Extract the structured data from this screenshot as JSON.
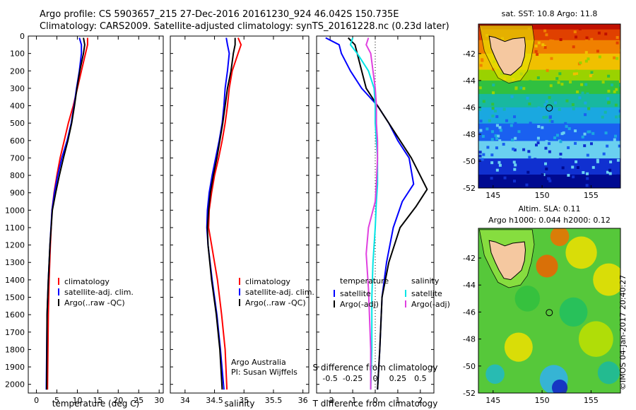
{
  "header": {
    "line1": "Argo profile: CS 5903657_215 27-Dec-2016 20161230_924 46.042S 150.735E",
    "line2": "Climatology: CARS2009. Satellite-adjusted climatology: synTS_20161228.nc (0.23d later)"
  },
  "colors": {
    "climatology": "#ff0000",
    "satellite": "#0000ff",
    "argo": "#000000",
    "salinity_sat": "#00e5e5",
    "salinity_argo": "#e040e0",
    "land": "#f5c8a0"
  },
  "chart_data": [
    {
      "type": "line",
      "id": "temperature",
      "xlabel": "temperature (deg C)",
      "xlim": [
        -2,
        31
      ],
      "ylim": [
        0,
        2050
      ],
      "inverted_y": true,
      "xticks": [
        0,
        5,
        10,
        15,
        20,
        25,
        30
      ],
      "yticks": [
        0,
        100,
        200,
        300,
        400,
        500,
        600,
        700,
        800,
        900,
        1000,
        1100,
        1200,
        1300,
        1400,
        1500,
        1600,
        1700,
        1800,
        1900,
        2000
      ],
      "legend": [
        "climatology",
        "satellite-adj. clim.",
        "Argo(..raw -QC)"
      ],
      "series": [
        {
          "name": "climatology",
          "color": "#ff0000",
          "x": [
            12.5,
            12.5,
            12,
            11,
            10,
            9,
            7.8,
            6.8,
            5.8,
            5,
            4.3,
            3.8,
            3.4,
            3.1,
            2.9,
            2.7
          ],
          "y": [
            10,
            50,
            100,
            200,
            300,
            400,
            500,
            600,
            700,
            800,
            900,
            1000,
            1200,
            1400,
            1600,
            2030
          ]
        },
        {
          "name": "satellite-adj. clim.",
          "color": "#0000ff",
          "x": [
            10.5,
            11,
            11,
            10.5,
            9.8,
            9.2,
            8.5,
            7.5,
            6.2,
            5.2,
            4.4,
            3.8,
            3.3,
            2.9,
            2.6,
            2.4
          ],
          "y": [
            10,
            50,
            100,
            200,
            300,
            400,
            500,
            600,
            700,
            800,
            900,
            1000,
            1200,
            1400,
            1600,
            2030
          ]
        },
        {
          "name": "Argo(..raw -QC)",
          "color": "#000000",
          "x": [
            11.5,
            11.8,
            11.5,
            10.6,
            9.9,
            9.3,
            8.6,
            7.7,
            6.6,
            5.6,
            4.7,
            3.9,
            3.3,
            2.9,
            2.6,
            2.5
          ],
          "y": [
            10,
            50,
            100,
            200,
            300,
            400,
            500,
            600,
            700,
            800,
            900,
            1000,
            1200,
            1400,
            1600,
            2030
          ]
        }
      ]
    },
    {
      "type": "line",
      "id": "salinity",
      "xlabel": "salinity",
      "xlim": [
        33.75,
        36.1
      ],
      "ylim": [
        0,
        2050
      ],
      "inverted_y": true,
      "xticks": [
        34,
        34.5,
        35,
        35.5,
        36
      ],
      "legend": [
        "climatology",
        "satellite-adj. clim.",
        "Argo(..raw -QC)"
      ],
      "credit": [
        "Argo Australia",
        "PI: Susan Wijffels"
      ],
      "series": [
        {
          "name": "climatology",
          "color": "#ff0000",
          "x": [
            34.9,
            34.95,
            34.9,
            34.8,
            34.75,
            34.72,
            34.68,
            34.63,
            34.57,
            34.5,
            34.45,
            34.41,
            34.4,
            34.45,
            34.55,
            34.62,
            34.68,
            34.71
          ],
          "y": [
            10,
            50,
            100,
            200,
            300,
            400,
            500,
            600,
            700,
            800,
            900,
            1000,
            1100,
            1200,
            1400,
            1600,
            1800,
            2030
          ]
        },
        {
          "name": "satellite-adj. clim.",
          "color": "#0000ff",
          "x": [
            34.7,
            34.72,
            34.75,
            34.72,
            34.68,
            34.66,
            34.63,
            34.58,
            34.52,
            34.46,
            34.41,
            34.38,
            34.37,
            34.39,
            34.46,
            34.54,
            34.6,
            34.66
          ],
          "y": [
            10,
            50,
            100,
            200,
            300,
            400,
            500,
            600,
            700,
            800,
            900,
            1000,
            1100,
            1200,
            1400,
            1600,
            1800,
            2030
          ]
        },
        {
          "name": "Argo(..raw -QC)",
          "color": "#000000",
          "x": [
            34.85,
            34.85,
            34.82,
            34.78,
            34.72,
            34.68,
            34.64,
            34.59,
            34.54,
            34.48,
            34.43,
            34.4,
            34.38,
            34.39,
            34.45,
            34.53,
            34.59,
            34.63
          ],
          "y": [
            10,
            50,
            100,
            200,
            300,
            400,
            500,
            600,
            700,
            800,
            900,
            1000,
            1100,
            1200,
            1400,
            1600,
            1800,
            2030
          ]
        }
      ]
    },
    {
      "type": "line",
      "id": "difference",
      "xlabel": "T difference from climatology",
      "xlabel_top": "S difference from climatology",
      "xlim": [
        -2.6,
        2.6
      ],
      "ylim": [
        0,
        2050
      ],
      "inverted_y": true,
      "xticks": [
        -2,
        -1,
        0,
        1,
        2
      ],
      "s_ticks": [
        -0.5,
        -0.25,
        0,
        0.25,
        0.5
      ],
      "legend_temperature_title": "temperature",
      "legend_salinity_title": "salinity",
      "legend": [
        "satellite",
        "Argo(-adj)",
        "satellite",
        "Argo(-adj)"
      ],
      "series": [
        {
          "name": "satellite",
          "group": "temperature",
          "color": "#0000ff",
          "x": [
            -2.2,
            -1.6,
            -1.5,
            -1.1,
            -0.6,
            0.1,
            0.6,
            1.0,
            1.5,
            1.7,
            1.2,
            0.8,
            0.5,
            0.3,
            0.2,
            0.1
          ],
          "y": [
            10,
            50,
            100,
            200,
            300,
            400,
            500,
            600,
            700,
            850,
            950,
            1100,
            1300,
            1500,
            1800,
            2030
          ]
        },
        {
          "name": "Argo(-adj)",
          "group": "temperature",
          "color": "#000000",
          "x": [
            -1.2,
            -0.9,
            -0.8,
            -0.6,
            -0.4,
            0.1,
            0.6,
            1.1,
            1.6,
            2.3,
            1.8,
            1.1,
            0.6,
            0.3,
            0.2,
            0.1
          ],
          "y": [
            10,
            50,
            100,
            200,
            300,
            400,
            500,
            600,
            700,
            880,
            980,
            1100,
            1300,
            1500,
            1800,
            2030
          ]
        },
        {
          "name": "satellite",
          "group": "salinity",
          "color": "#00e5e5",
          "x": [
            -1.0,
            -1.1,
            -0.8,
            -0.3,
            -0.05,
            0,
            0,
            0.05,
            0.1,
            0.1,
            0.05,
            0,
            -0.1,
            -0.15,
            -0.15,
            -0.2
          ],
          "y": [
            10,
            50,
            100,
            200,
            300,
            400,
            500,
            600,
            700,
            850,
            950,
            1100,
            1300,
            1500,
            1800,
            2030
          ]
        },
        {
          "name": "Argo(-adj)",
          "group": "salinity",
          "color": "#e040e0",
          "x": [
            -0.3,
            -0.4,
            -0.2,
            -0.1,
            0,
            0.05,
            0.05,
            0.1,
            0.1,
            0.05,
            0,
            -0.3,
            -0.4,
            -0.3,
            -0.2,
            -0.2
          ],
          "y": [
            10,
            50,
            100,
            200,
            300,
            400,
            500,
            600,
            700,
            850,
            950,
            1100,
            1250,
            1450,
            1800,
            2030
          ]
        }
      ]
    },
    {
      "type": "heatmap",
      "id": "sst_map",
      "title": "sat. SST: 10.8 Argo: 11.8",
      "xlim": [
        143.5,
        158
      ],
      "ylim": [
        -52,
        -39.8
      ],
      "xticks": [
        145,
        150,
        155
      ],
      "yticks": [
        -42,
        -44,
        -46,
        -48,
        -50,
        -52
      ],
      "profile_lon": 150.735,
      "profile_lat": -46.042,
      "bands": [
        {
          "lat": -40.2,
          "color": "#c01000"
        },
        {
          "lat": -41.0,
          "color": "#e04000"
        },
        {
          "lat": -42.0,
          "color": "#f08000"
        },
        {
          "lat": -43.2,
          "color": "#f0c000"
        },
        {
          "lat": -44.0,
          "color": "#9ad200"
        },
        {
          "lat": -45.0,
          "color": "#30c040"
        },
        {
          "lat": -46.0,
          "color": "#18b8a0"
        },
        {
          "lat": -47.2,
          "color": "#1aa8e0"
        },
        {
          "lat": -48.5,
          "color": "#1a60f0"
        },
        {
          "lat": -49.8,
          "color": "#6ad0f0"
        },
        {
          "lat": -51.0,
          "color": "#1030d0"
        },
        {
          "lat": -52.0,
          "color": "#000a90"
        }
      ]
    },
    {
      "type": "heatmap",
      "id": "sla_map",
      "title": "Altim. SLA: 0.11",
      "subtitle": "Argo h1000: 0.044 h2000: 0.12",
      "xlim": [
        143.5,
        158
      ],
      "ylim": [
        -52,
        -39.8
      ],
      "xticks": [
        145,
        150,
        155
      ],
      "yticks": [
        -42,
        -44,
        -46,
        -48,
        -50,
        -52
      ],
      "profile_lon": 150.735,
      "profile_lat": -46.042,
      "blobs": [
        {
          "lon": 151.8,
          "lat": -40.4,
          "r": 0.6,
          "color": "#f07000"
        },
        {
          "lon": 150.5,
          "lat": -42.6,
          "r": 0.7,
          "color": "#f06000"
        },
        {
          "lon": 154.0,
          "lat": -41.6,
          "r": 1.0,
          "color": "#f0e000"
        },
        {
          "lon": 156.8,
          "lat": -43.6,
          "r": 1.0,
          "color": "#f0e000"
        },
        {
          "lon": 147.6,
          "lat": -48.6,
          "r": 0.9,
          "color": "#f0e000"
        },
        {
          "lon": 155.5,
          "lat": -48.0,
          "r": 1.1,
          "color": "#c0e000"
        },
        {
          "lon": 151.2,
          "lat": -51.0,
          "r": 0.9,
          "color": "#30b0f0"
        },
        {
          "lon": 151.8,
          "lat": -51.6,
          "r": 0.5,
          "color": "#1020c0"
        },
        {
          "lon": 145.2,
          "lat": -50.6,
          "r": 0.6,
          "color": "#20b8c8"
        },
        {
          "lon": 153.2,
          "lat": -46.0,
          "r": 0.9,
          "color": "#20c060"
        },
        {
          "lon": 156.8,
          "lat": -50.5,
          "r": 0.7,
          "color": "#1ab8a0"
        },
        {
          "lon": 148.5,
          "lat": -45.0,
          "r": 0.8,
          "color": "#30c040"
        }
      ]
    }
  ],
  "stamp": "©IMOS 04-Jan-2017 20:40:27"
}
